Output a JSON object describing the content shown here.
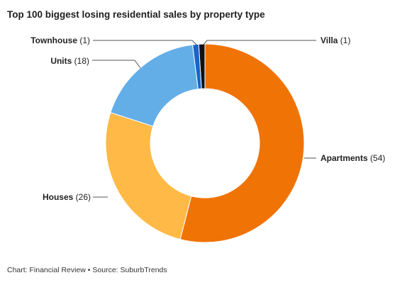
{
  "chart_data": {
    "type": "pie",
    "title": "Top 100 biggest losing residential sales by property type",
    "categories": [
      "Apartments",
      "Houses",
      "Units",
      "Townhouse",
      "Villa"
    ],
    "values": [
      54,
      26,
      18,
      1,
      1
    ],
    "display_labels": [
      "(54)",
      "(26)",
      "(18)",
      "(1)",
      "(1)"
    ],
    "colors": [
      "#f07306",
      "#ffb946",
      "#64aee8",
      "#1a64c8",
      "#111111"
    ],
    "style": "donut",
    "start_category": "Villa",
    "direction": "counterclockwise",
    "legend": "none"
  },
  "footer": "Chart: Financial Review • Source: SuburbTrends"
}
